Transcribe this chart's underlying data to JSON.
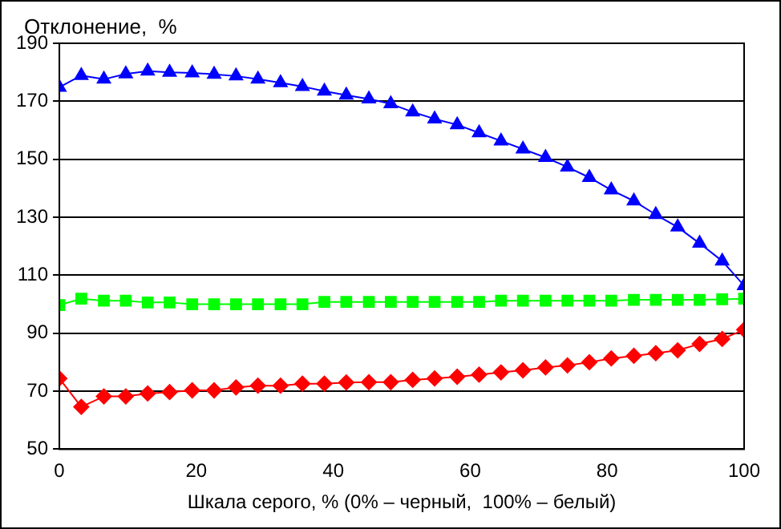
{
  "chart_data": {
    "type": "line",
    "ylabel": "Отклонение,  %",
    "xlabel": "Шкала серого, % (0% – черный,  100% – белый)",
    "x": [
      0,
      3.2,
      6.5,
      9.7,
      12.9,
      16.1,
      19.4,
      22.6,
      25.8,
      29,
      32.3,
      35.5,
      38.7,
      41.9,
      45.2,
      48.4,
      51.6,
      54.8,
      58.1,
      61.3,
      64.5,
      67.7,
      71,
      74.2,
      77.4,
      80.6,
      83.9,
      87.1,
      90.3,
      93.5,
      96.8,
      100
    ],
    "series": [
      {
        "color": "#0000ff",
        "marker": "triangle",
        "values": [
          174.8,
          178.9,
          177.6,
          179.4,
          180.4,
          180,
          179.8,
          179.3,
          178.7,
          177.6,
          176.4,
          175.1,
          173.5,
          172.1,
          170.8,
          169.1,
          166.3,
          163.9,
          161.9,
          159.1,
          156.3,
          153.5,
          150.6,
          147.3,
          143.7,
          139.4,
          135.6,
          130.9,
          126.6,
          121,
          114.9,
          106.4
        ]
      },
      {
        "color": "#00ff00",
        "marker": "square",
        "values": [
          99.7,
          101.9,
          101.2,
          101.2,
          100.6,
          100.6,
          100,
          100,
          100,
          100,
          100,
          100,
          100.8,
          100.8,
          100.8,
          100.8,
          100.8,
          100.8,
          100.8,
          100.8,
          101.2,
          101.2,
          101.2,
          101.2,
          101.2,
          101.2,
          101.5,
          101.5,
          101.5,
          101.5,
          101.7,
          101.9
        ]
      },
      {
        "color": "#ff0000",
        "marker": "diamond",
        "values": [
          74.4,
          64.6,
          68.2,
          68.2,
          69.2,
          69.7,
          70.3,
          70.3,
          71.3,
          71.9,
          71.9,
          72.6,
          72.6,
          73,
          73.1,
          73.1,
          73.9,
          74.4,
          75,
          75.7,
          76.5,
          77.2,
          78.2,
          78.9,
          80,
          81.3,
          82.2,
          83.1,
          84.1,
          86.3,
          88,
          91.2
        ]
      }
    ],
    "xlim": [
      0,
      100
    ],
    "xticks": [
      0,
      20,
      40,
      60,
      80,
      100
    ],
    "ylim": [
      50,
      190
    ],
    "yticks": [
      50,
      70,
      90,
      110,
      130,
      150,
      170,
      190
    ],
    "grid": "y",
    "legend": false
  }
}
